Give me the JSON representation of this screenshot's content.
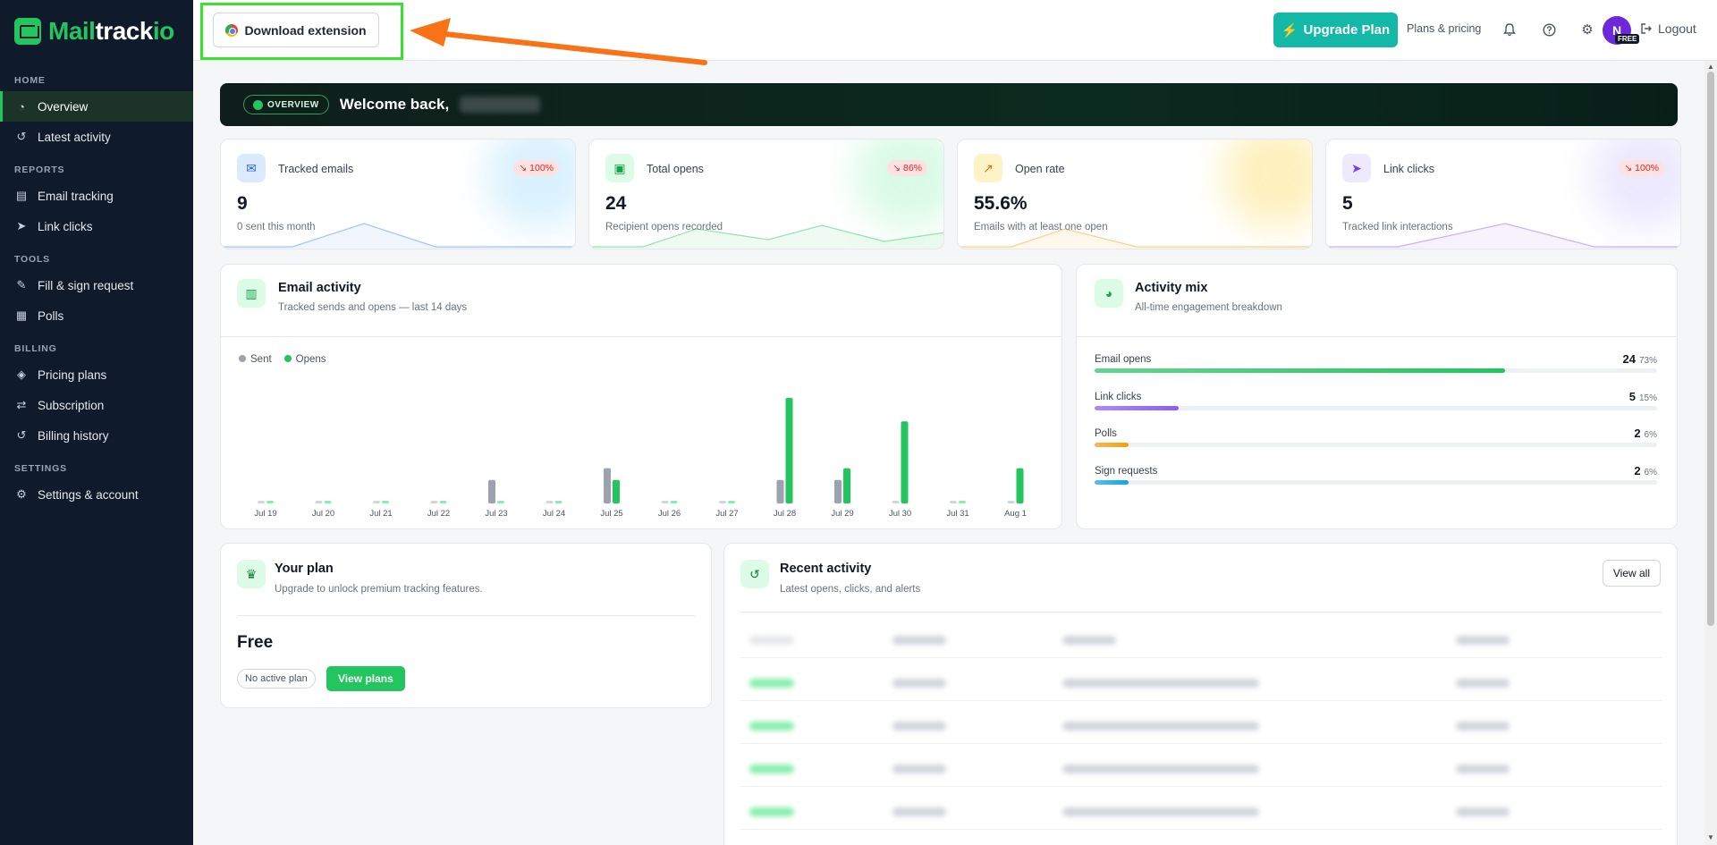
{
  "brand": {
    "part1": "Mail",
    "part2": "track",
    "part3": "io"
  },
  "sidebar": {
    "sections": [
      {
        "title": "HOME",
        "items": [
          {
            "label": "Overview",
            "icon": "gauge-icon",
            "active": true
          },
          {
            "label": "Latest activity",
            "icon": "history-icon"
          }
        ]
      },
      {
        "title": "REPORTS",
        "items": [
          {
            "label": "Email tracking",
            "icon": "inbox-icon"
          },
          {
            "label": "Link clicks",
            "icon": "cursor-icon"
          }
        ]
      },
      {
        "title": "TOOLS",
        "items": [
          {
            "label": "Fill & sign request",
            "icon": "signature-icon"
          },
          {
            "label": "Polls",
            "icon": "poll-icon"
          }
        ]
      },
      {
        "title": "BILLING",
        "items": [
          {
            "label": "Pricing plans",
            "icon": "tags-icon"
          },
          {
            "label": "Subscription",
            "icon": "repeat-icon"
          },
          {
            "label": "Billing history",
            "icon": "history-icon"
          }
        ]
      },
      {
        "title": "SETTINGS",
        "items": [
          {
            "label": "Settings & account",
            "icon": "gear-icon"
          }
        ]
      }
    ]
  },
  "topbar": {
    "download_label": "Download extension",
    "upgrade_label": "Upgrade Plan",
    "plans_label": "Plans & pricing",
    "avatar_initial": "N",
    "free_badge": "FREE",
    "logout_label": "Logout"
  },
  "banner": {
    "badge": "OVERVIEW",
    "welcome": "Welcome back,"
  },
  "stats": [
    {
      "label": "Tracked emails",
      "badge": "100%",
      "value": "9",
      "sub": "0 sent this month",
      "color": "#3b82f6",
      "glow": "#bae6fd"
    },
    {
      "label": "Total opens",
      "badge": "86%",
      "value": "24",
      "sub": "Recipient opens recorded",
      "color": "#22c55e",
      "glow": "#bbf7d0"
    },
    {
      "label": "Open rate",
      "badge": "",
      "value": "55.6%",
      "sub": "Emails with at least one open",
      "color": "#f59e0b",
      "glow": "#fde68a"
    },
    {
      "label": "Link clicks",
      "badge": "100%",
      "value": "5",
      "sub": "Tracked link interactions",
      "color": "#8b5cf6",
      "glow": "#ddd6fe"
    }
  ],
  "email_activity": {
    "title": "Email activity",
    "subtitle": "Tracked sends and opens — last 14 days",
    "legend_sent": "Sent",
    "legend_opens": "Opens"
  },
  "chart_data": {
    "type": "bar",
    "categories": [
      "Jul 19",
      "Jul 20",
      "Jul 21",
      "Jul 22",
      "Jul 23",
      "Jul 24",
      "Jul 25",
      "Jul 26",
      "Jul 27",
      "Jul 28",
      "Jul 29",
      "Jul 30",
      "Jul 31",
      "Aug 1"
    ],
    "series": [
      {
        "name": "Sent",
        "color": "#9ca3af",
        "values": [
          0,
          0,
          0,
          0,
          2,
          0,
          3,
          0,
          0,
          2,
          2,
          0,
          0,
          0
        ]
      },
      {
        "name": "Opens",
        "color": "#22c55e",
        "values": [
          0,
          0,
          0,
          0,
          0,
          0,
          2,
          0,
          0,
          9,
          3,
          7,
          0,
          3
        ]
      }
    ],
    "ylim": [
      0,
      9
    ]
  },
  "activity_mix": {
    "title": "Activity mix",
    "subtitle": "All-time engagement breakdown",
    "rows": [
      {
        "label": "Email opens",
        "value": "24",
        "pct": "73%",
        "fill": 0.73,
        "color": "#22c55e"
      },
      {
        "label": "Link clicks",
        "value": "5",
        "pct": "15%",
        "fill": 0.15,
        "color": "#8b5cf6"
      },
      {
        "label": "Polls",
        "value": "2",
        "pct": "6%",
        "fill": 0.06,
        "color": "#f59e0b"
      },
      {
        "label": "Sign requests",
        "value": "2",
        "pct": "6%",
        "fill": 0.06,
        "color": "#0ea5e9"
      }
    ]
  },
  "plan": {
    "title": "Your plan",
    "subtitle": "Upgrade to unlock premium tracking features.",
    "name": "Free",
    "chip": "No active plan",
    "button": "View plans"
  },
  "recent": {
    "title": "Recent activity",
    "subtitle": "Latest opens, clicks, and alerts",
    "view_all": "View all"
  }
}
